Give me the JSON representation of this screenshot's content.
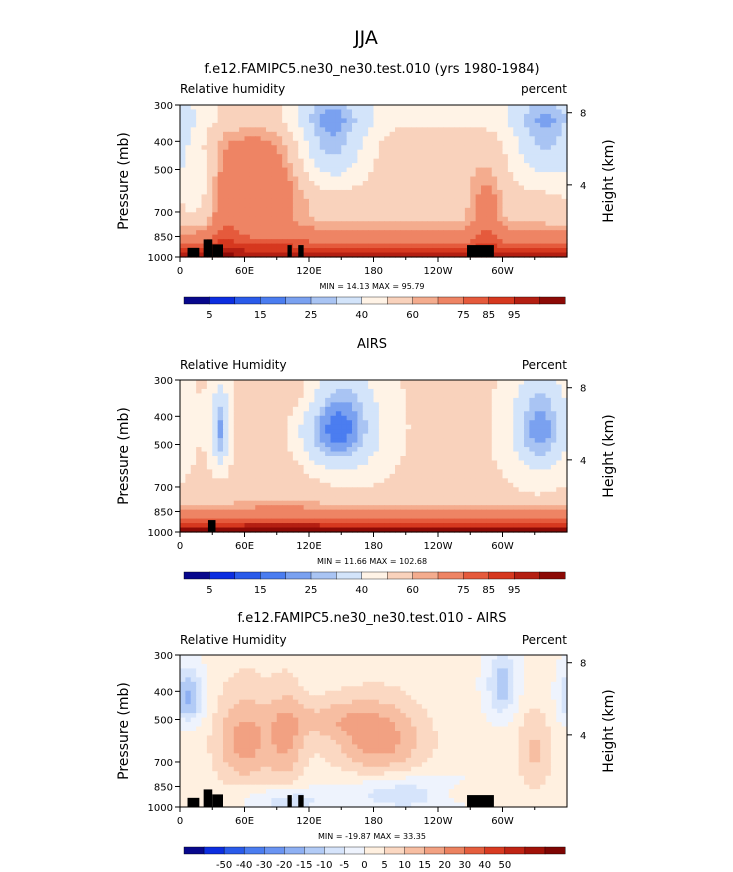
{
  "page": {
    "title": "JJA"
  },
  "colors": {
    "rh_bar": [
      "#08088c",
      "#0c2ee0",
      "#2a5bea",
      "#4b7df0",
      "#7aa1f0",
      "#a9c4f3",
      "#d3e4fa",
      "#fff3e6",
      "#f9d2bc",
      "#f4ac8e",
      "#ee8464",
      "#e55a3c",
      "#d6381f",
      "#b41f12",
      "#8c0a06"
    ],
    "diff_bar": [
      "#08088c",
      "#0c2ee0",
      "#2a5bea",
      "#4b7df0",
      "#6a94f2",
      "#8eb0f3",
      "#b2cbf6",
      "#d6e4fb",
      "#eef3fd",
      "#fff0e0",
      "#fbd8c2",
      "#f7bea2",
      "#f2a182",
      "#ec8260",
      "#e55e3e",
      "#d93b22",
      "#c02414",
      "#a11108",
      "#7e0503"
    ],
    "land": "#000000"
  },
  "chart_data": [
    {
      "type": "heatmap",
      "title": "f.e12.FAMIPC5.ne30_ne30.test.010 (yrs 1980-1984)",
      "left_label": "Relative humidity",
      "right_label": "percent",
      "ylabel": "Pressure (mb)",
      "y2label": "Height (km)",
      "x_ticks": [
        "0",
        "60E",
        "120E",
        "180",
        "120W",
        "60W"
      ],
      "y_ticks": [
        "300",
        "400",
        "500",
        "700",
        "850",
        "1000"
      ],
      "y2_ticks": [
        "8",
        "4"
      ],
      "stats": "MIN =   14.13   MAX =   95.79",
      "colorbar_labels": [
        "5",
        "15",
        "25",
        "40",
        "60",
        "75",
        "85",
        "95"
      ],
      "xlim": [
        0,
        360
      ],
      "ylim": [
        1000,
        300
      ],
      "y_scale": "log"
    },
    {
      "type": "heatmap",
      "title": "AIRS",
      "left_label": "Relative Humidity",
      "right_label": "Percent",
      "ylabel": "Pressure (mb)",
      "y2label": "Height (km)",
      "x_ticks": [
        "0",
        "60E",
        "120E",
        "180",
        "120W",
        "60W"
      ],
      "y_ticks": [
        "300",
        "400",
        "500",
        "700",
        "850",
        "1000"
      ],
      "y2_ticks": [
        "8",
        "4"
      ],
      "stats": "MIN =   11.66   MAX =  102.68",
      "colorbar_labels": [
        "5",
        "15",
        "25",
        "40",
        "60",
        "75",
        "85",
        "95"
      ],
      "xlim": [
        0,
        360
      ],
      "ylim": [
        1000,
        300
      ],
      "y_scale": "log"
    },
    {
      "type": "heatmap",
      "title": "f.e12.FAMIPC5.ne30_ne30.test.010 - AIRS",
      "left_label": "Relative Humidity",
      "right_label": "Percent",
      "ylabel": "Pressure (mb)",
      "y2label": "Height (km)",
      "x_ticks": [
        "0",
        "60E",
        "120E",
        "180",
        "120W",
        "60W"
      ],
      "y_ticks": [
        "300",
        "400",
        "500",
        "700",
        "850",
        "1000"
      ],
      "y2_ticks": [
        "8",
        "4"
      ],
      "stats": "MIN =  -19.87   MAX =   33.35",
      "colorbar_labels": [
        "-50",
        "-40",
        "-30",
        "-20",
        "-15",
        "-10",
        "-5",
        "0",
        "5",
        "10",
        "15",
        "20",
        "30",
        "40",
        "50"
      ],
      "xlim": [
        0,
        360
      ],
      "ylim": [
        1000,
        300
      ],
      "y_scale": "log"
    }
  ]
}
